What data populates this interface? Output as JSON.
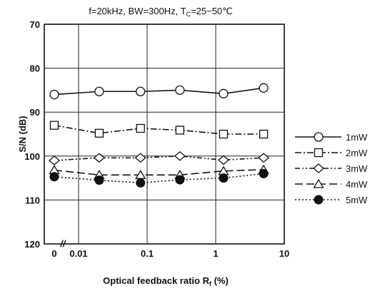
{
  "chart_data": {
    "type": "line",
    "title": "f=20kHz, BW=300Hz, T",
    "title_subscript": "C",
    "title_suffix": "=25−50℃",
    "xlabel": "Optical feedback ratio R",
    "xlabel_subscript": "f",
    "xlabel_suffix": " (%)",
    "ylabel": "S/N (dB)",
    "x_scale": "log",
    "y_reversed": true,
    "ylim": [
      70,
      120
    ],
    "y_ticks": [
      "70",
      "80",
      "90",
      "100",
      "110",
      "120"
    ],
    "x_ticks": [
      {
        "label": "0",
        "x": 0
      },
      {
        "label": "0.01",
        "x": 0.01
      },
      {
        "label": "0.1",
        "x": 0.1
      },
      {
        "label": "1",
        "x": 1
      },
      {
        "label": "10",
        "x": 10
      }
    ],
    "axis_break_marker": "//",
    "grid": true,
    "legend_position": "right",
    "x": [
      0,
      0.02,
      0.08,
      0.3,
      1.3,
      5
    ],
    "series": [
      {
        "name": "1mW",
        "marker": "circle-open",
        "dash": "solid",
        "values": [
          86,
          85.3,
          85.3,
          85,
          85.8,
          84.5
        ]
      },
      {
        "name": "2mW",
        "marker": "square-open",
        "dash": "dash-dot",
        "values": [
          93,
          94.8,
          93.7,
          94.1,
          95,
          95
        ]
      },
      {
        "name": "3mW",
        "marker": "diamond-open",
        "dash": "dash-dot-dot",
        "values": [
          101,
          100.4,
          100.4,
          100,
          100.9,
          100.4
        ]
      },
      {
        "name": "4mW",
        "marker": "triangle-open",
        "dash": "long-dash",
        "values": [
          103.2,
          104.3,
          104.3,
          104.3,
          103.4,
          103.1
        ]
      },
      {
        "name": "5mW",
        "marker": "circle-filled",
        "dash": "dotted",
        "values": [
          104.7,
          105.5,
          106.1,
          105.4,
          105,
          104
        ]
      }
    ]
  }
}
